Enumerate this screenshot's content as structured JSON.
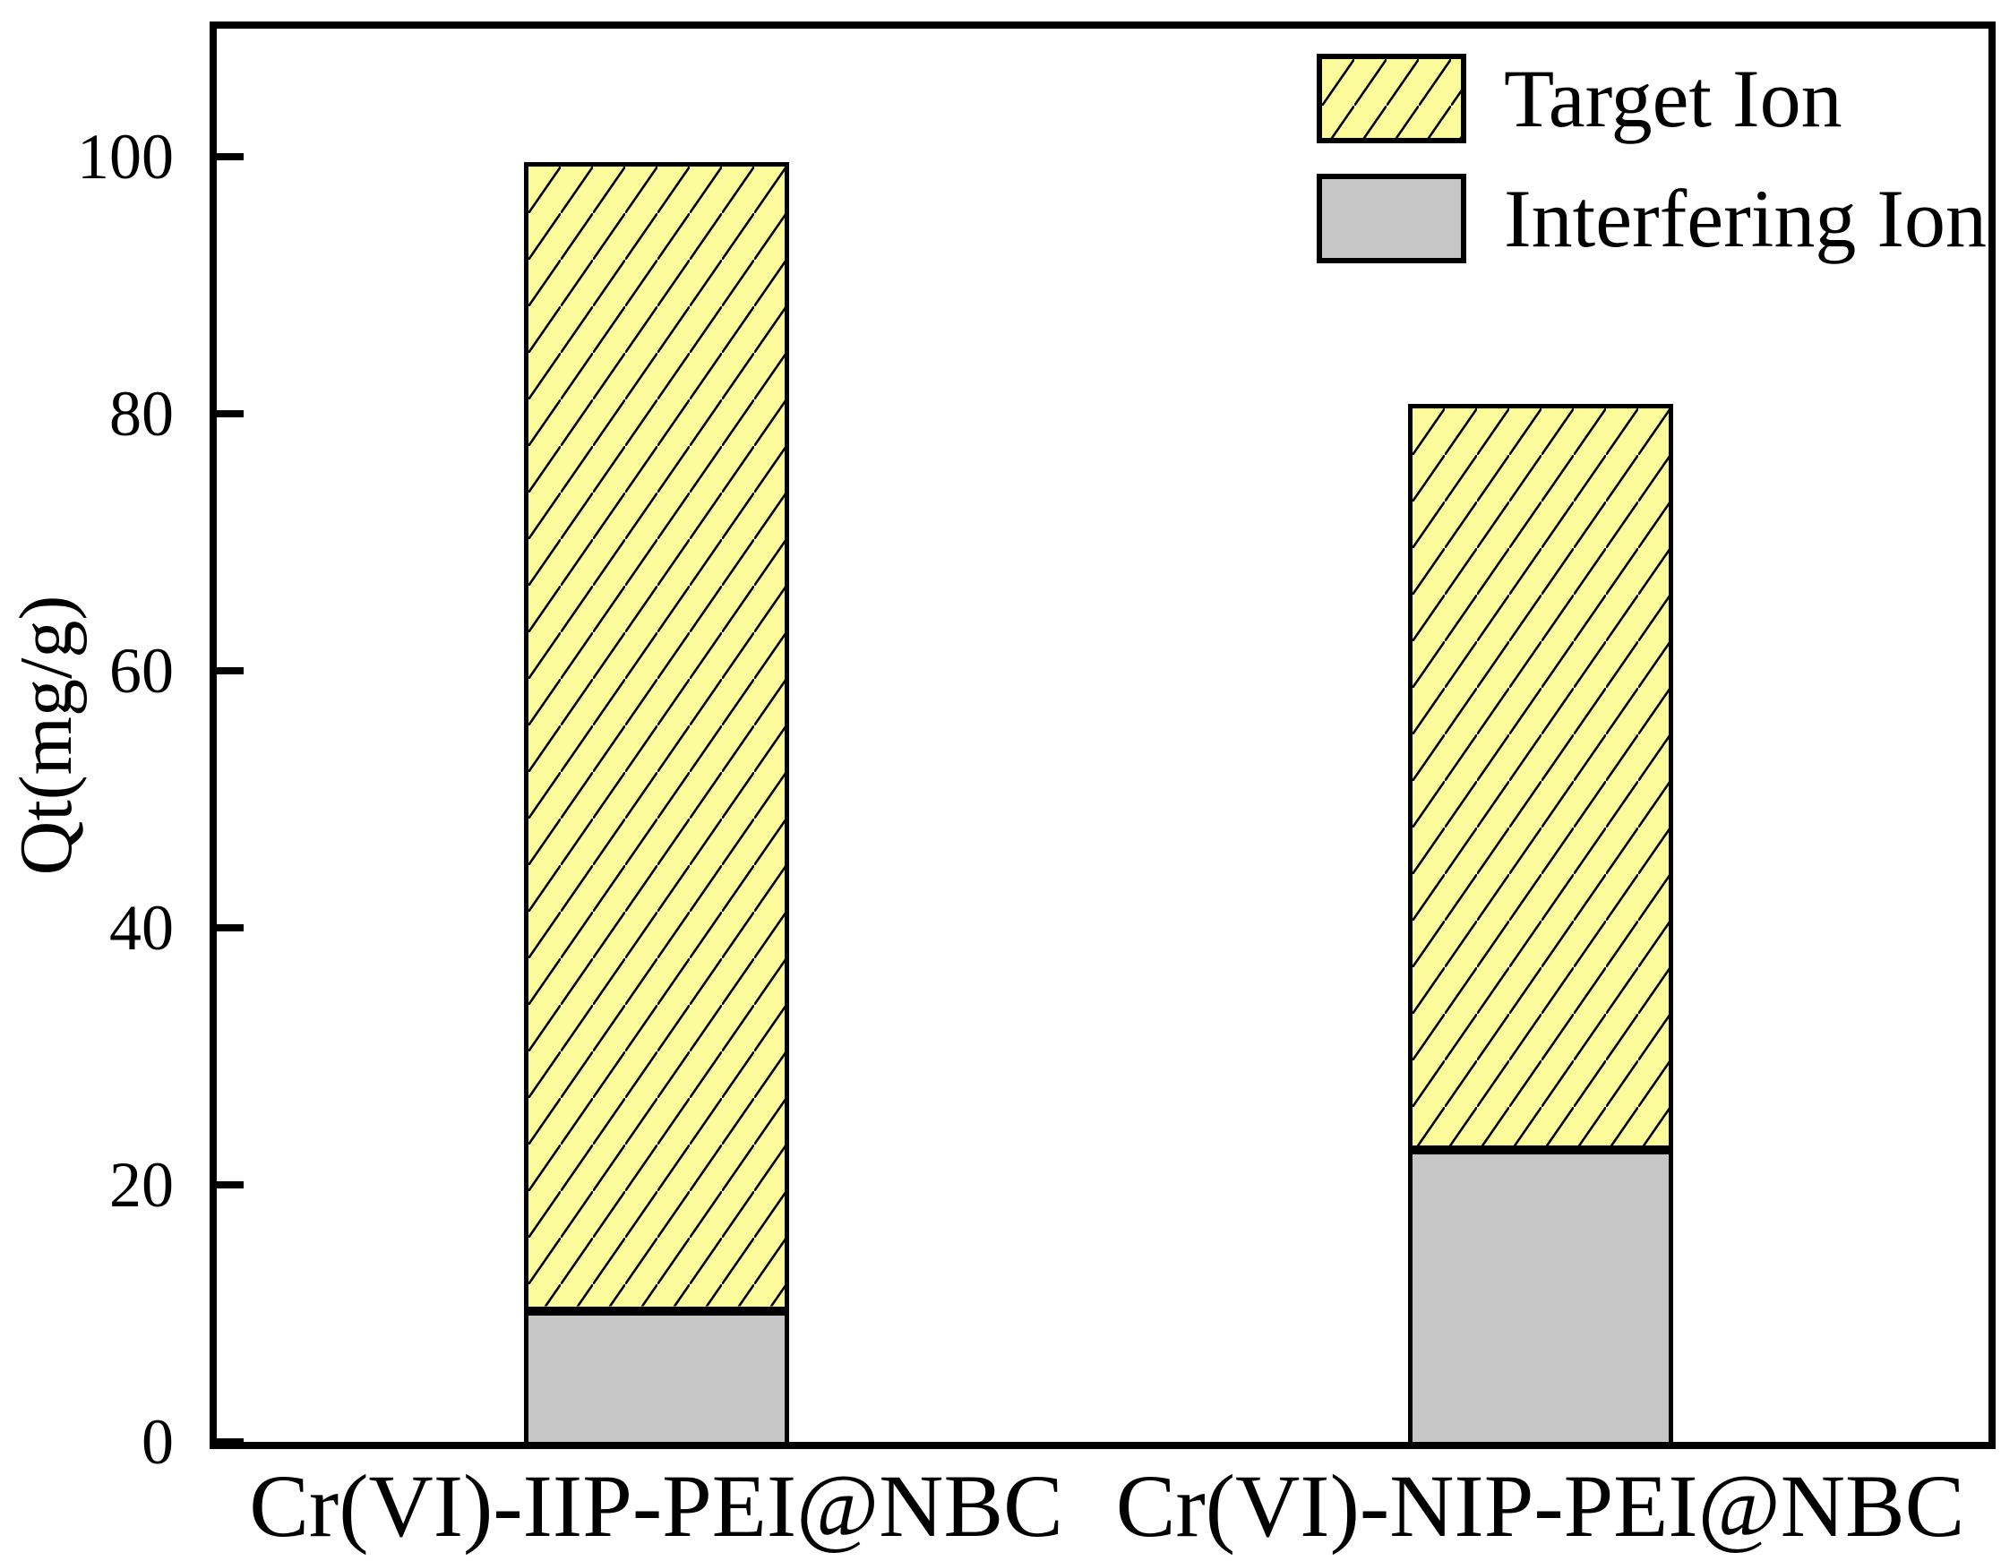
{
  "chart_data": {
    "type": "bar",
    "stacked": true,
    "categories": [
      "Cr(VI)-IIP-PEI@NBC",
      "Cr(VI)-NIP-PEI@NBC"
    ],
    "series": [
      {
        "name": "Interfering Ion",
        "values": [
          10.2,
          22.7
        ],
        "fill": "#c6c6c6",
        "hatch": "none"
      },
      {
        "name": "Target Ion",
        "values": [
          89.4,
          58.1
        ],
        "fill": "#fbfb9b",
        "hatch": "diagonal"
      }
    ],
    "stack_totals": [
      99.6,
      80.8
    ],
    "title": "",
    "xlabel": "",
    "ylabel": "Qt(mg/g)",
    "ylim": [
      0,
      110
    ],
    "yticks": [
      0,
      20,
      40,
      60,
      80,
      100
    ],
    "grid": false,
    "legend_position": "top-right",
    "legend_order": [
      "Target Ion",
      "Interfering Ion"
    ]
  },
  "legend": {
    "items": [
      {
        "label": "Target Ion",
        "swatch": "yellow-hatched"
      },
      {
        "label": "Interfering Ion",
        "swatch": "gray-solid"
      }
    ]
  },
  "colors": {
    "target_fill": "#fbfb9b",
    "interfering_fill": "#c6c6c6",
    "hatch_line": "#000000",
    "frame": "#000000",
    "background": "#ffffff"
  }
}
